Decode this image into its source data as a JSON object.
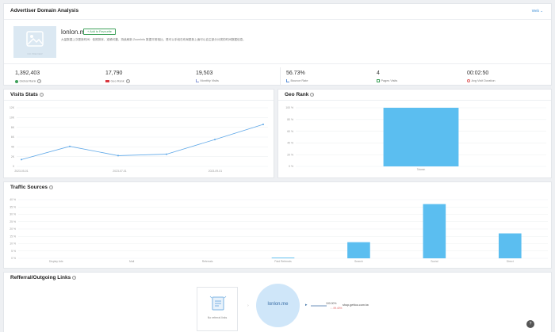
{
  "header": {
    "title": "Advertiser Domain Analysis",
    "top_right": "Web"
  },
  "domain": {
    "name": "lonlon.me",
    "favorite_label": "+ Add to Favourite",
    "logo_caption": "NO PREVIEW",
    "description": "大量数据上次更新时间：依照排序，准确可靠，持续刷新 ZoomInfo 数据平常相比，是可以手段在布局更新上面可以自主部分分类的时间数据信息。"
  },
  "metrics": [
    {
      "value": "1,392,403",
      "label": "Global Rank",
      "icon": "globe-icon",
      "color": "#3fa15b"
    },
    {
      "value": "17,790",
      "label": "Geo Rank",
      "icon": "flag-icon",
      "color": "#d9363e"
    },
    {
      "value": "19,503",
      "label": "Monthly Visits",
      "icon": "chart-icon",
      "color": "#8a9ad6"
    },
    {
      "value": "56.73%",
      "label": "Bounce Rate",
      "icon": "bounce-icon",
      "color": "#5b8fd6"
    },
    {
      "value": "4",
      "label": "Pages Visits",
      "icon": "pages-icon",
      "color": "#3fa15b"
    },
    {
      "value": "00:02:50",
      "label": "Avg Visit Duration",
      "icon": "clock-icon",
      "color": "#e06060"
    }
  ],
  "visits": {
    "title": "Visits Stats",
    "chart_data": {
      "type": "line",
      "y_ticks": [
        "12K",
        "10K",
        "8K",
        "6K",
        "4K",
        "2K",
        "0"
      ],
      "x_labels": [
        "2023-05-01",
        "2023-07-01",
        "2023-09-01"
      ],
      "values": [
        1400,
        4100,
        2200,
        2500,
        5500,
        8600
      ],
      "ylim": [
        0,
        12000
      ],
      "grid": true,
      "color": "#5fa8e8"
    }
  },
  "georank": {
    "title": "Geo Rank",
    "chart_data": {
      "type": "bar",
      "y_ticks": [
        "100 %",
        "80 %",
        "60 %",
        "40 %",
        "20 %",
        "0 %"
      ],
      "categories": [
        "Taiwan"
      ],
      "values": [
        100
      ],
      "ylim": [
        0,
        100
      ],
      "color": "#5bbef0"
    }
  },
  "traffic": {
    "title": "Traffic Sources",
    "chart_data": {
      "type": "bar",
      "y_ticks": [
        "40 %",
        "35 %",
        "30 %",
        "25 %",
        "20 %",
        "15 %",
        "10 %",
        "5 %",
        "0 %"
      ],
      "categories": [
        "Display Ads",
        "Mail",
        "Referrals",
        "Paid Referrals",
        "Search",
        "Social",
        "Direct"
      ],
      "values": [
        0,
        0,
        0,
        0.5,
        11,
        37,
        17
      ],
      "ylim": [
        0,
        40
      ],
      "color": "#5bbef0"
    }
  },
  "referral": {
    "title": "Refferral/Outgoing Links",
    "no_data_label": "No referral links",
    "center_label": "lonlon.me",
    "outgoing": {
      "percent": "100.00%",
      "delta": "↓ -99.40%",
      "domain": "shop.gettoo.com.tw"
    }
  },
  "help_icon": "?"
}
